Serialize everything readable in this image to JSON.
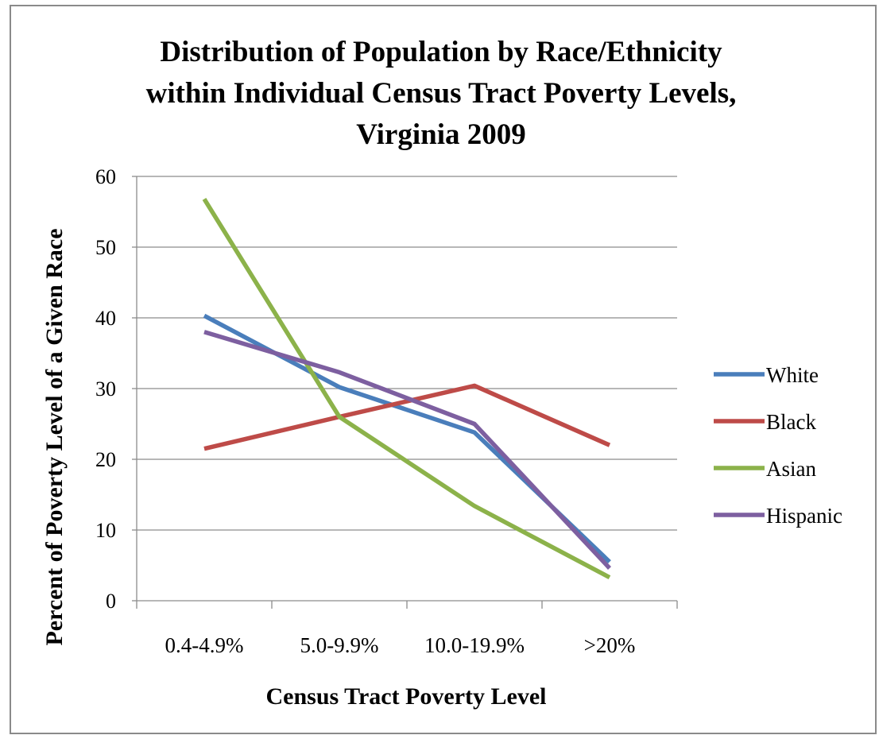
{
  "chart_data": {
    "type": "line",
    "title": "Distribution of Population by Race/Ethnicity within Individual Census Tract Poverty Levels, Virginia 2009",
    "title_lines": [
      "Distribution of Population by Race/Ethnicity",
      "within Individual Census Tract Poverty Levels,",
      "Virginia 2009"
    ],
    "xlabel": "Census Tract Poverty Level",
    "ylabel": "Percent of Poverty Level of a Given Race",
    "categories": [
      "0.4-4.9%",
      "5.0-9.9%",
      "10.0-19.9%",
      ">20%"
    ],
    "ylim": [
      0,
      60
    ],
    "yticks": [
      0,
      10,
      20,
      30,
      40,
      50,
      60
    ],
    "grid": true,
    "legend_position": "right",
    "series": [
      {
        "name": "White",
        "color": "#4a7ebb",
        "values": [
          40.3,
          30.2,
          23.8,
          5.5
        ]
      },
      {
        "name": "Black",
        "color": "#be4b48",
        "values": [
          21.5,
          26.0,
          30.4,
          22.0
        ]
      },
      {
        "name": "Asian",
        "color": "#8cb24a",
        "values": [
          56.8,
          26.0,
          13.4,
          3.3
        ]
      },
      {
        "name": "Hispanic",
        "color": "#7d5fa0",
        "values": [
          38.0,
          32.3,
          25.0,
          4.6
        ]
      }
    ]
  }
}
